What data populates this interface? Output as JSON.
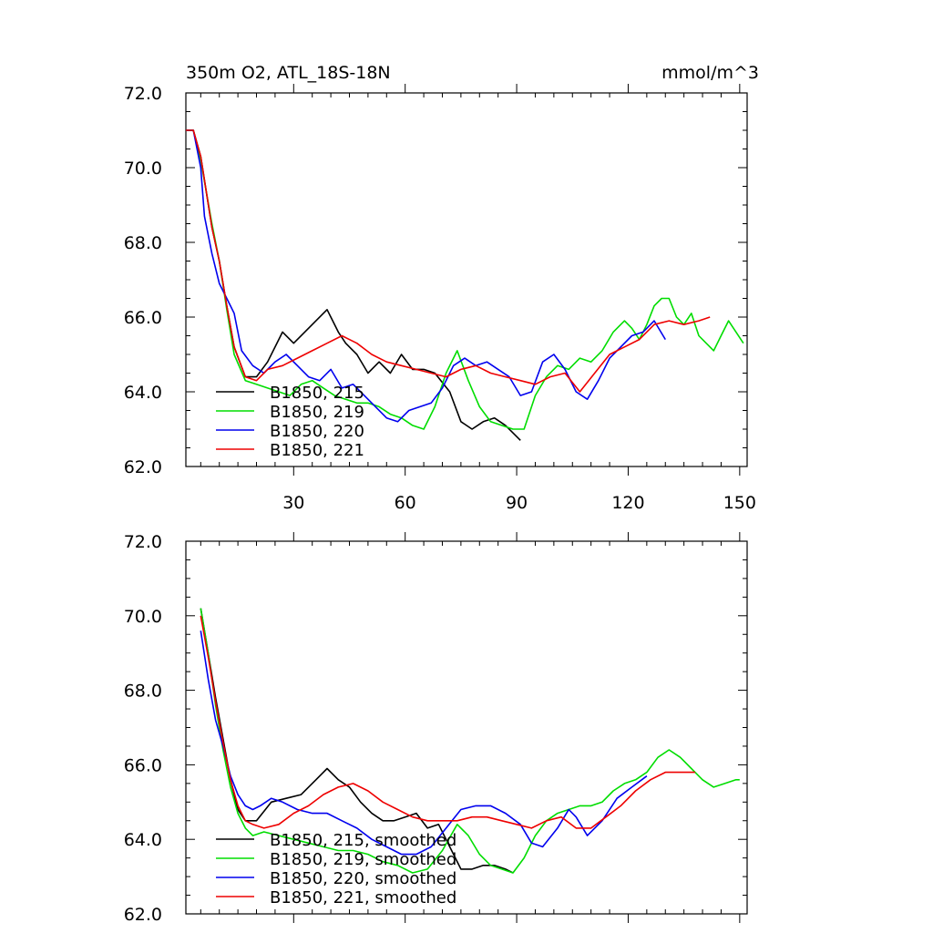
{
  "figure": {
    "title": "350m O2, ATL_18S-18N",
    "units": "mmol/m^3"
  },
  "chart_data": [
    {
      "type": "line",
      "title": "350m O2, ATL_18S-18N",
      "ylabel": "mmol/m^3",
      "xlim": [
        1,
        152
      ],
      "ylim": [
        62,
        72
      ],
      "x_ticks": [
        30,
        60,
        90,
        120,
        150
      ],
      "x_tick_labels": [
        "30",
        "60",
        "90",
        "120",
        "150"
      ],
      "y_ticks": [
        62,
        64,
        66,
        68,
        70,
        72
      ],
      "y_tick_labels": [
        "62.0",
        "64.0",
        "66.0",
        "68.0",
        "70.0",
        "72.0"
      ],
      "legend_position": "bottom-left",
      "series": [
        {
          "name": "B1850, 215",
          "color": "#000000",
          "x": [
            1,
            3,
            5,
            8,
            10,
            12,
            14,
            17,
            20,
            23,
            27,
            30,
            33,
            36,
            39,
            40,
            42,
            44,
            47,
            50,
            53,
            56,
            59,
            62,
            65,
            68,
            72,
            75,
            78,
            81,
            84,
            87,
            90,
            91
          ],
          "y": [
            71.0,
            71.0,
            70.3,
            68.4,
            67.5,
            66.3,
            65.2,
            64.4,
            64.4,
            64.8,
            65.6,
            65.3,
            65.6,
            65.9,
            66.2,
            66.0,
            65.6,
            65.3,
            65.0,
            64.5,
            64.8,
            64.5,
            65.0,
            64.6,
            64.6,
            64.5,
            64.0,
            63.2,
            63.0,
            63.2,
            63.3,
            63.1,
            62.8,
            62.7
          ]
        },
        {
          "name": "B1850, 219",
          "color": "#00dd00",
          "x": [
            1,
            3,
            5,
            8,
            10,
            12,
            14,
            17,
            20,
            23,
            26,
            29,
            32,
            35,
            38,
            41,
            44,
            47,
            50,
            53,
            56,
            59,
            62,
            65,
            68,
            71,
            74,
            77,
            80,
            83,
            86,
            89,
            92,
            95,
            98,
            101,
            104,
            107,
            110,
            113,
            116,
            119,
            121,
            123,
            125,
            127,
            129,
            131,
            133,
            135,
            137,
            139,
            141,
            143,
            145,
            147,
            149,
            151
          ],
          "y": [
            71.0,
            71.0,
            70.2,
            68.5,
            67.5,
            66.2,
            65.0,
            64.3,
            64.2,
            64.1,
            64.0,
            63.9,
            64.2,
            64.3,
            64.1,
            63.9,
            63.8,
            63.7,
            63.7,
            63.6,
            63.4,
            63.3,
            63.1,
            63.0,
            63.6,
            64.5,
            65.1,
            64.3,
            63.6,
            63.2,
            63.1,
            63.0,
            63.0,
            63.9,
            64.4,
            64.7,
            64.6,
            64.9,
            64.8,
            65.1,
            65.6,
            65.9,
            65.7,
            65.4,
            65.8,
            66.3,
            66.5,
            66.5,
            66.0,
            65.8,
            66.1,
            65.5,
            65.3,
            65.1,
            65.5,
            65.9,
            65.6,
            65.3
          ]
        },
        {
          "name": "B1850, 220",
          "color": "#0000ee",
          "x": [
            1,
            3,
            5,
            6,
            8,
            10,
            12,
            14,
            16,
            19,
            22,
            25,
            28,
            31,
            34,
            37,
            40,
            43,
            46,
            49,
            52,
            55,
            58,
            61,
            64,
            67,
            70,
            73,
            76,
            79,
            82,
            85,
            88,
            91,
            94,
            97,
            100,
            103,
            106,
            109,
            112,
            115,
            118,
            121,
            124,
            127,
            130
          ],
          "y": [
            71.0,
            71.0,
            70.0,
            68.7,
            67.7,
            66.9,
            66.5,
            66.1,
            65.1,
            64.7,
            64.5,
            64.8,
            65.0,
            64.7,
            64.4,
            64.3,
            64.6,
            64.1,
            64.2,
            63.9,
            63.6,
            63.3,
            63.2,
            63.5,
            63.6,
            63.7,
            64.1,
            64.7,
            64.9,
            64.7,
            64.8,
            64.6,
            64.4,
            63.9,
            64.0,
            64.8,
            65.0,
            64.6,
            64.0,
            63.8,
            64.3,
            64.9,
            65.2,
            65.5,
            65.6,
            65.9,
            65.4
          ]
        },
        {
          "name": "B1850, 221",
          "color": "#ee0000",
          "x": [
            1,
            3,
            5,
            8,
            10,
            12,
            14,
            17,
            20,
            23,
            27,
            31,
            35,
            39,
            43,
            47,
            51,
            55,
            59,
            63,
            67,
            71,
            75,
            79,
            83,
            87,
            91,
            95,
            99,
            103,
            107,
            111,
            115,
            119,
            123,
            127,
            131,
            135,
            139,
            142
          ],
          "y": [
            71.0,
            71.0,
            70.3,
            68.4,
            67.5,
            66.3,
            65.2,
            64.4,
            64.3,
            64.6,
            64.7,
            64.9,
            65.1,
            65.3,
            65.5,
            65.3,
            65.0,
            64.8,
            64.7,
            64.6,
            64.5,
            64.4,
            64.6,
            64.7,
            64.5,
            64.4,
            64.3,
            64.2,
            64.4,
            64.5,
            64.0,
            64.5,
            65.0,
            65.2,
            65.4,
            65.8,
            65.9,
            65.8,
            65.9,
            66.0
          ]
        }
      ]
    },
    {
      "type": "line",
      "xlim": [
        1,
        152
      ],
      "ylim": [
        62,
        72
      ],
      "x_ticks": [
        30,
        60,
        90,
        120,
        150
      ],
      "y_ticks": [
        62,
        64,
        66,
        68,
        70,
        72
      ],
      "y_tick_labels": [
        "62.0",
        "64.0",
        "66.0",
        "68.0",
        "70.0",
        "72.0"
      ],
      "legend_position": "bottom-left",
      "series": [
        {
          "name": "B1850, 215, smoothed",
          "color": "#000000",
          "x": [
            5,
            7,
            9,
            11,
            13,
            15,
            17,
            20,
            24,
            28,
            32,
            36,
            39,
            42,
            45,
            48,
            51,
            54,
            57,
            60,
            63,
            66,
            69,
            72,
            75,
            78,
            81,
            84,
            87,
            89
          ],
          "y": [
            70.2,
            69.0,
            67.8,
            66.7,
            65.6,
            64.8,
            64.5,
            64.5,
            65.0,
            65.1,
            65.2,
            65.6,
            65.9,
            65.6,
            65.4,
            65.0,
            64.7,
            64.5,
            64.5,
            64.6,
            64.7,
            64.3,
            64.4,
            63.8,
            63.2,
            63.2,
            63.3,
            63.3,
            63.2,
            63.1
          ]
        },
        {
          "name": "B1850, 219, smoothed",
          "color": "#00dd00",
          "x": [
            5,
            7,
            9,
            11,
            13,
            15,
            17,
            19,
            22,
            26,
            30,
            34,
            38,
            42,
            46,
            50,
            54,
            58,
            62,
            66,
            70,
            74,
            77,
            80,
            83,
            86,
            89,
            92,
            95,
            98,
            101,
            104,
            107,
            110,
            113,
            116,
            119,
            122,
            125,
            128,
            131,
            134,
            137,
            140,
            143,
            146,
            149,
            150
          ],
          "y": [
            70.2,
            69.0,
            67.6,
            66.4,
            65.4,
            64.7,
            64.3,
            64.1,
            64.2,
            64.1,
            64.0,
            63.9,
            63.8,
            63.7,
            63.7,
            63.6,
            63.4,
            63.3,
            63.1,
            63.2,
            63.7,
            64.4,
            64.1,
            63.6,
            63.3,
            63.2,
            63.1,
            63.5,
            64.1,
            64.5,
            64.7,
            64.8,
            64.9,
            64.9,
            65.0,
            65.3,
            65.5,
            65.6,
            65.8,
            66.2,
            66.4,
            66.2,
            65.9,
            65.6,
            65.4,
            65.5,
            65.6,
            65.6
          ]
        },
        {
          "name": "B1850, 220, smoothed",
          "color": "#0000ee",
          "x": [
            5,
            7,
            9,
            11,
            13,
            15,
            17,
            19,
            21,
            24,
            27,
            31,
            35,
            39,
            43,
            47,
            51,
            55,
            59,
            63,
            67,
            71,
            75,
            79,
            83,
            87,
            91,
            94,
            97,
            101,
            104,
            106,
            109,
            113,
            117,
            121,
            125
          ],
          "y": [
            69.6,
            68.3,
            67.2,
            66.5,
            65.7,
            65.2,
            64.9,
            64.8,
            64.9,
            65.1,
            65.0,
            64.8,
            64.7,
            64.7,
            64.5,
            64.3,
            64.0,
            63.8,
            63.6,
            63.6,
            63.8,
            64.3,
            64.8,
            64.9,
            64.9,
            64.7,
            64.4,
            63.9,
            63.8,
            64.3,
            64.8,
            64.6,
            64.1,
            64.5,
            65.1,
            65.4,
            65.7
          ]
        },
        {
          "name": "B1850, 221, smoothed",
          "color": "#ee0000",
          "x": [
            5,
            7,
            9,
            11,
            13,
            15,
            17,
            19,
            22,
            26,
            30,
            34,
            38,
            42,
            46,
            50,
            54,
            58,
            62,
            66,
            70,
            74,
            78,
            82,
            86,
            90,
            94,
            98,
            102,
            106,
            110,
            114,
            118,
            122,
            126,
            130,
            134,
            138
          ],
          "y": [
            70.0,
            68.9,
            67.7,
            66.6,
            65.6,
            64.9,
            64.5,
            64.4,
            64.3,
            64.4,
            64.7,
            64.9,
            65.2,
            65.4,
            65.5,
            65.3,
            65.0,
            64.8,
            64.6,
            64.5,
            64.5,
            64.5,
            64.6,
            64.6,
            64.5,
            64.4,
            64.3,
            64.5,
            64.6,
            64.3,
            64.3,
            64.6,
            64.9,
            65.3,
            65.6,
            65.8,
            65.8,
            65.8
          ]
        }
      ]
    }
  ]
}
